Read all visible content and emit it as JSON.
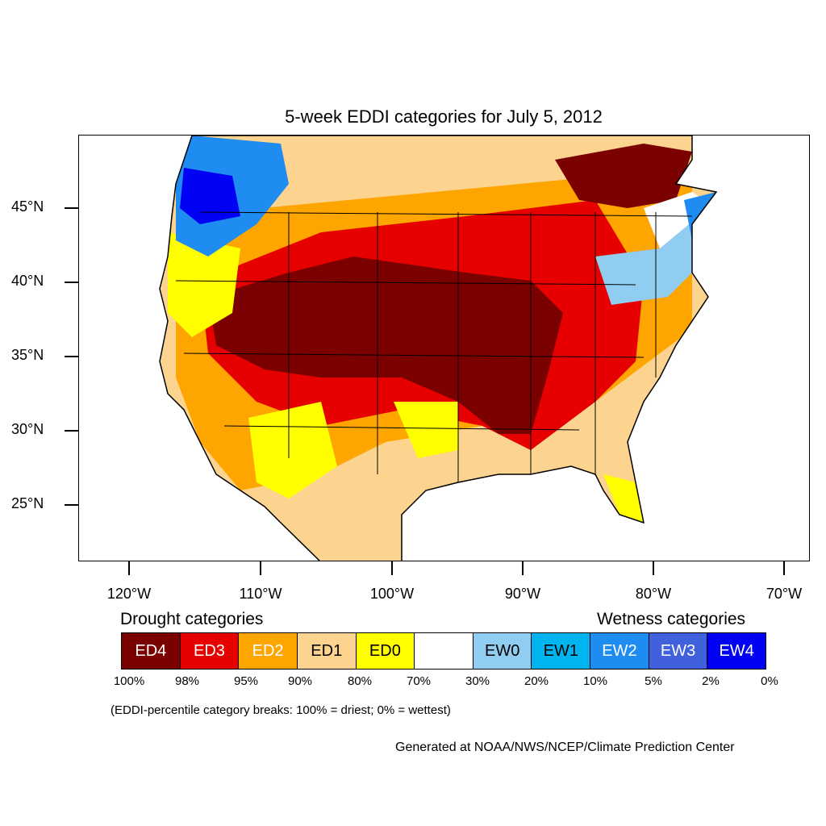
{
  "title": "5-week EDDI categories for July 5, 2012",
  "lat_labels": [
    "45°N",
    "40°N",
    "35°N",
    "30°N",
    "25°N"
  ],
  "lon_labels": [
    "120°W",
    "110°W",
    "100°W",
    "90°W",
    "80°W",
    "70°W"
  ],
  "drought_heading": "Drought categories",
  "wetness_heading": "Wetness categories",
  "legend": [
    {
      "label": "ED4",
      "color": "#7b0000",
      "text_color": "#ffffff"
    },
    {
      "label": "ED3",
      "color": "#e60000",
      "text_color": "#ffffff"
    },
    {
      "label": "ED2",
      "color": "#ffa500",
      "text_color": "#ffffff"
    },
    {
      "label": "ED1",
      "color": "#fcd38f",
      "text_color": "#000000"
    },
    {
      "label": "ED0",
      "color": "#ffff00",
      "text_color": "#000000"
    },
    {
      "label": "",
      "color": "#ffffff",
      "text_color": "#000000"
    },
    {
      "label": "EW0",
      "color": "#90cdf0",
      "text_color": "#000000"
    },
    {
      "label": "EW1",
      "color": "#00b4f0",
      "text_color": "#000000"
    },
    {
      "label": "EW2",
      "color": "#1e8cf0",
      "text_color": "#ffffff"
    },
    {
      "label": "EW3",
      "color": "#4060dc",
      "text_color": "#ffffff"
    },
    {
      "label": "EW4",
      "color": "#0000f5",
      "text_color": "#ffffff"
    }
  ],
  "percent_breaks": [
    "100%",
    "98%",
    "95%",
    "90%",
    "80%",
    "70%",
    "30%",
    "20%",
    "10%",
    "5%",
    "2%",
    "0%"
  ],
  "note": "(EDDI-percentile category breaks: 100% = driest; 0% = wettest)",
  "credit": "Generated at NOAA/NWS/NCEP/Climate Prediction Center"
}
